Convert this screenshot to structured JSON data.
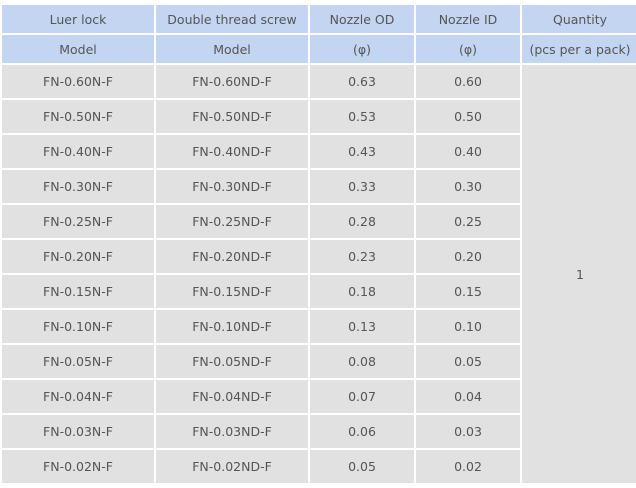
{
  "header": {
    "row1": [
      "Luer lock",
      "Double thread screw",
      "Nozzle OD",
      "Nozzle ID",
      "Quantity"
    ],
    "row2": [
      "Model",
      "Model",
      "(φ)",
      "(φ)",
      "(pcs per a pack)"
    ]
  },
  "rows": [
    [
      "FN-0.60N-F",
      "FN-0.60ND-F",
      "0.63",
      "0.60"
    ],
    [
      "FN-0.50N-F",
      "FN-0.50ND-F",
      "0.53",
      "0.50"
    ],
    [
      "FN-0.40N-F",
      "FN-0.40ND-F",
      "0.43",
      "0.40"
    ],
    [
      "FN-0.30N-F",
      "FN-0.30ND-F",
      "0.33",
      "0.30"
    ],
    [
      "FN-0.25N-F",
      "FN-0.25ND-F",
      "0.28",
      "0.25"
    ],
    [
      "FN-0.20N-F",
      "FN-0.20ND-F",
      "0.23",
      "0.20"
    ],
    [
      "FN-0.15N-F",
      "FN-0.15ND-F",
      "0.18",
      "0.15"
    ],
    [
      "FN-0.10N-F",
      "FN-0.10ND-F",
      "0.13",
      "0.10"
    ],
    [
      "FN-0.05N-F",
      "FN-0.05ND-F",
      "0.08",
      "0.05"
    ],
    [
      "FN-0.04N-F",
      "FN-0.04ND-F",
      "0.07",
      "0.04"
    ],
    [
      "FN-0.03N-F",
      "FN-0.03ND-F",
      "0.06",
      "0.03"
    ],
    [
      "FN-0.02N-F",
      "FN-0.02ND-F",
      "0.05",
      "0.02"
    ]
  ],
  "quantity": "1",
  "colors": {
    "header_bg": "#c3d5f1",
    "body_bg": "#e1e1e1",
    "text": "#555555"
  }
}
